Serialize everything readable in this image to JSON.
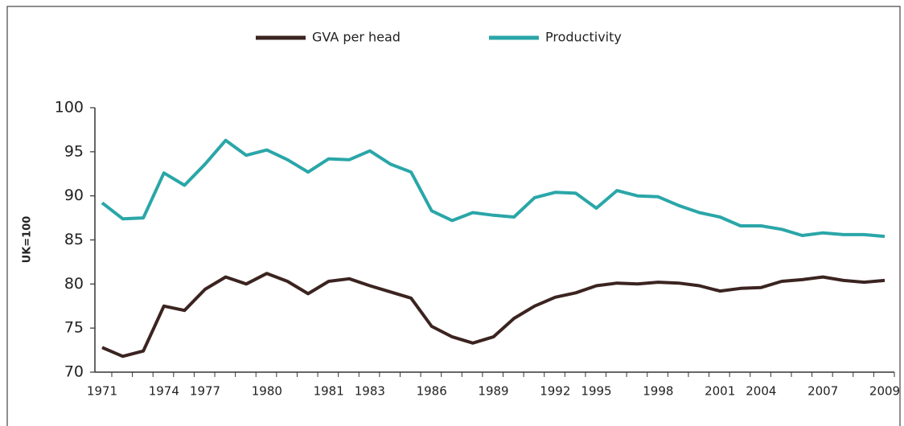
{
  "chart_data": {
    "type": "line",
    "y_label": "UK=100",
    "categories": [
      "1971",
      null,
      null,
      "1974",
      null,
      "1977",
      null,
      null,
      "1980",
      null,
      null,
      "1981",
      null,
      "1983",
      null,
      null,
      "1986",
      null,
      null,
      "1989",
      null,
      null,
      "1992",
      null,
      "1995",
      null,
      null,
      "1998",
      null,
      null,
      "2001",
      null,
      "2004",
      null,
      null,
      "2007",
      null,
      null,
      "2009"
    ],
    "series": [
      {
        "name": "GVA per head",
        "color": "#3b2420",
        "values": [
          72.8,
          71.8,
          72.4,
          77.5,
          77.0,
          79.4,
          80.8,
          80.0,
          81.2,
          80.3,
          78.9,
          80.3,
          80.6,
          79.8,
          79.1,
          78.4,
          75.2,
          74.0,
          73.3,
          74.0,
          76.1,
          77.5,
          78.5,
          79.0,
          79.8,
          80.1,
          80.0,
          80.2,
          80.1,
          79.8,
          79.2,
          79.5,
          79.6,
          80.3,
          80.5,
          80.8,
          80.4,
          80.2,
          80.4
        ]
      },
      {
        "name": "Productivity",
        "color": "#2aa6a8",
        "values": [
          89.2,
          87.4,
          87.5,
          92.6,
          91.2,
          93.6,
          96.3,
          94.6,
          95.2,
          94.1,
          92.7,
          94.2,
          94.1,
          95.1,
          93.6,
          92.7,
          88.3,
          87.2,
          88.1,
          87.8,
          87.6,
          89.8,
          90.4,
          90.3,
          88.6,
          90.6,
          90.0,
          89.9,
          88.9,
          88.1,
          87.6,
          86.6,
          86.6,
          86.2,
          85.5,
          85.8,
          85.6,
          85.6,
          85.4
        ]
      }
    ],
    "ylim": [
      70,
      100
    ],
    "yticks": [
      70,
      75,
      80,
      85,
      90,
      95,
      100
    ],
    "grid": false
  }
}
